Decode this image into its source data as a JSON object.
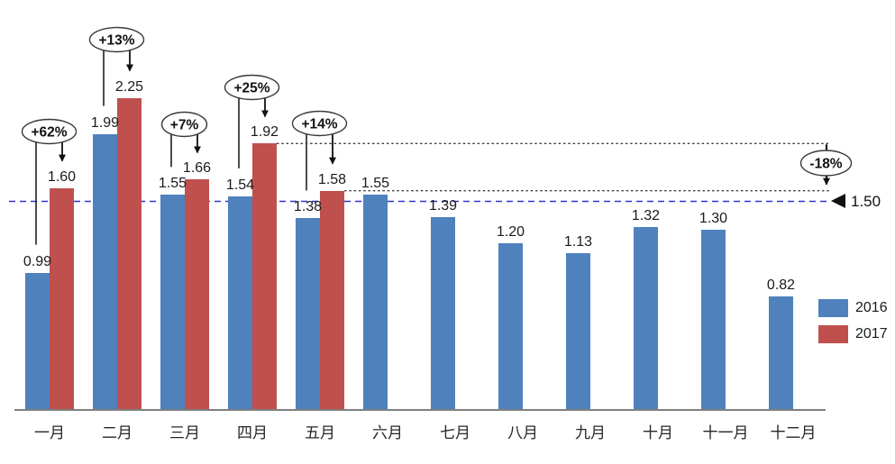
{
  "chart_data": {
    "type": "bar",
    "title": "",
    "xlabel": "",
    "ylabel": "",
    "categories": [
      "一月",
      "二月",
      "三月",
      "四月",
      "五月",
      "六月",
      "七月",
      "八月",
      "九月",
      "十月",
      "十一月",
      "十二月"
    ],
    "series": [
      {
        "name": "2016",
        "color": "#4F81BD",
        "values": [
          0.99,
          1.99,
          1.55,
          1.54,
          1.38,
          1.55,
          1.39,
          1.2,
          1.13,
          1.32,
          1.3,
          0.82
        ]
      },
      {
        "name": "2017",
        "color": "#C0504D",
        "values": [
          1.6,
          2.25,
          1.66,
          1.92,
          1.58,
          null,
          null,
          null,
          null,
          null,
          null,
          null
        ]
      }
    ],
    "ylim": [
      0,
      2.4
    ],
    "grid": false,
    "axis_color": "#808080",
    "legend_position": "right",
    "legend": [
      {
        "label": "2016",
        "color": "#4F81BD"
      },
      {
        "label": "2017",
        "color": "#C0504D"
      }
    ],
    "growth_annotations": [
      {
        "month_index": 0,
        "label": "+62%"
      },
      {
        "month_index": 1,
        "label": "+13%"
      },
      {
        "month_index": 2,
        "label": "+7%"
      },
      {
        "month_index": 3,
        "label": "+25%"
      },
      {
        "month_index": 4,
        "label": "+14%"
      }
    ],
    "decline_annotation": {
      "label": "-18%",
      "from_month_index": 3,
      "from_value": 1.92,
      "to_month_index": 4,
      "to_value": 1.58
    },
    "reference_line": {
      "value": 1.5,
      "label": "1.50",
      "color": "#3333CC"
    }
  }
}
